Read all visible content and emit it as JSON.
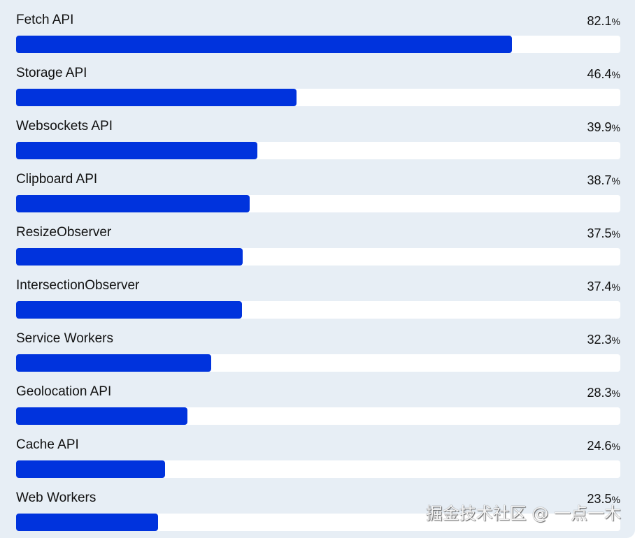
{
  "chart_data": {
    "type": "bar",
    "orientation": "horizontal",
    "categories": [
      "Fetch API",
      "Storage API",
      "Websockets API",
      "Clipboard API",
      "ResizeObserver",
      "IntersectionObserver",
      "Service Workers",
      "Geolocation API",
      "Cache API",
      "Web Workers"
    ],
    "values": [
      82.1,
      46.4,
      39.9,
      38.7,
      37.5,
      37.4,
      32.3,
      28.3,
      24.6,
      23.5
    ],
    "unit": "%",
    "xlim": [
      0,
      100
    ],
    "grid": false,
    "colors": {
      "bar": "#0033dd",
      "track": "#ffffff",
      "background": "#e7eef5"
    }
  },
  "watermark": "掘金技术社区 @ 一点一木"
}
